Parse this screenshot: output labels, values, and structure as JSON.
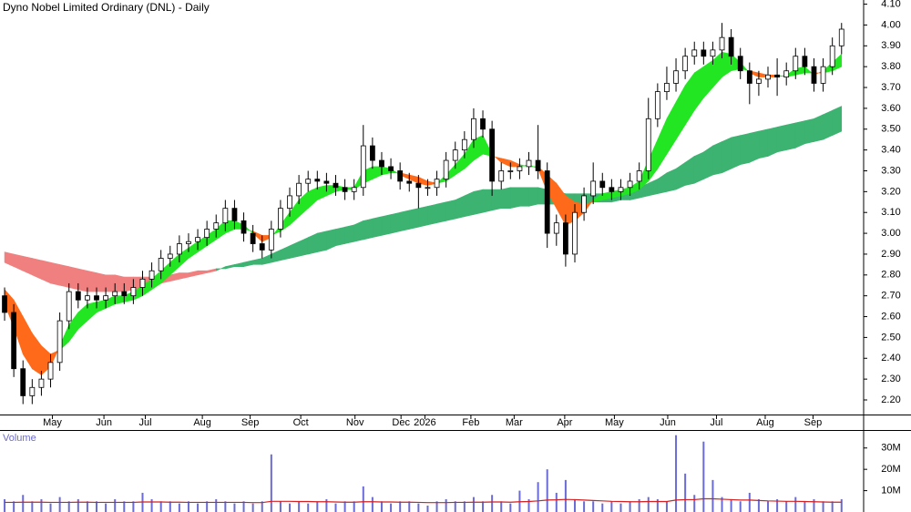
{
  "chart_data": [
    {
      "type": "candlestick",
      "title": "Dyno Nobel Limited Ordinary (DNL) - Daily",
      "open": [
        2.7,
        2.62,
        2.35,
        2.22,
        2.26,
        2.3,
        2.38,
        2.58,
        2.72,
        2.68,
        2.7,
        2.68,
        2.7,
        2.72,
        2.7,
        2.74,
        2.78,
        2.82,
        2.88,
        2.9,
        2.95,
        2.96,
        2.98,
        3.02,
        3.05,
        3.12,
        3.06,
        3.0,
        2.95,
        2.92,
        3.02,
        3.12,
        3.18,
        3.24,
        3.26,
        3.25,
        3.24,
        3.22,
        3.2,
        3.22,
        3.42,
        3.35,
        3.32,
        3.3,
        3.25,
        3.24,
        3.22,
        3.22,
        3.26,
        3.35,
        3.4,
        3.45,
        3.55,
        3.5,
        3.25,
        3.3,
        3.3,
        3.32,
        3.35,
        3.3,
        3.0,
        3.05,
        2.9,
        3.1,
        3.18,
        3.25,
        3.22,
        3.2,
        3.22,
        3.25,
        3.3,
        3.55,
        3.68,
        3.72,
        3.78,
        3.85,
        3.88,
        3.85,
        3.88,
        3.94,
        3.85,
        3.78,
        3.72,
        3.74,
        3.76,
        3.75,
        3.78,
        3.85,
        3.8,
        3.72,
        3.8,
        3.9
      ],
      "high": [
        2.74,
        2.66,
        2.39,
        2.3,
        2.34,
        2.42,
        2.62,
        2.76,
        2.76,
        2.74,
        2.74,
        2.74,
        2.76,
        2.76,
        2.78,
        2.82,
        2.86,
        2.92,
        2.94,
        2.99,
        3.0,
        3.02,
        3.06,
        3.09,
        3.16,
        3.16,
        3.1,
        3.04,
        2.99,
        3.06,
        3.16,
        3.22,
        3.28,
        3.3,
        3.3,
        3.29,
        3.28,
        3.26,
        3.26,
        3.52,
        3.46,
        3.39,
        3.36,
        3.34,
        3.29,
        3.28,
        3.26,
        3.3,
        3.39,
        3.44,
        3.49,
        3.6,
        3.59,
        3.54,
        3.34,
        3.34,
        3.36,
        3.39,
        3.52,
        3.34,
        3.09,
        3.09,
        3.14,
        3.22,
        3.34,
        3.29,
        3.26,
        3.26,
        3.29,
        3.34,
        3.65,
        3.72,
        3.8,
        3.84,
        3.89,
        3.92,
        3.92,
        3.92,
        4.01,
        3.98,
        3.89,
        3.82,
        3.78,
        3.8,
        3.84,
        3.82,
        3.89,
        3.89,
        3.84,
        3.84,
        3.94,
        4.01
      ],
      "low": [
        2.58,
        2.31,
        2.18,
        2.18,
        2.22,
        2.26,
        2.34,
        2.54,
        2.64,
        2.64,
        2.64,
        2.64,
        2.66,
        2.66,
        2.66,
        2.7,
        2.74,
        2.78,
        2.84,
        2.86,
        2.91,
        2.92,
        2.94,
        2.98,
        3.01,
        3.02,
        2.96,
        2.91,
        2.88,
        2.88,
        2.98,
        3.08,
        3.14,
        3.2,
        3.21,
        3.2,
        3.18,
        3.16,
        3.16,
        3.18,
        3.31,
        3.28,
        3.26,
        3.21,
        3.2,
        3.12,
        3.18,
        3.18,
        3.22,
        3.31,
        3.36,
        3.41,
        3.46,
        3.18,
        3.21,
        3.26,
        3.26,
        3.28,
        3.26,
        2.93,
        2.94,
        2.84,
        2.86,
        3.06,
        3.14,
        3.18,
        3.16,
        3.16,
        3.18,
        3.21,
        3.26,
        3.51,
        3.64,
        3.68,
        3.74,
        3.81,
        3.81,
        3.81,
        3.84,
        3.81,
        3.74,
        3.62,
        3.66,
        3.7,
        3.66,
        3.71,
        3.74,
        3.76,
        3.68,
        3.68,
        3.76,
        3.86
      ],
      "close": [
        2.62,
        2.35,
        2.22,
        2.26,
        2.3,
        2.38,
        2.58,
        2.72,
        2.68,
        2.7,
        2.68,
        2.7,
        2.72,
        2.7,
        2.74,
        2.78,
        2.82,
        2.88,
        2.9,
        2.95,
        2.96,
        2.98,
        3.02,
        3.05,
        3.12,
        3.06,
        3.0,
        2.95,
        2.92,
        3.02,
        3.12,
        3.18,
        3.24,
        3.26,
        3.25,
        3.24,
        3.22,
        3.2,
        3.22,
        3.42,
        3.35,
        3.32,
        3.3,
        3.25,
        3.24,
        3.22,
        3.22,
        3.26,
        3.35,
        3.4,
        3.45,
        3.55,
        3.5,
        3.25,
        3.3,
        3.3,
        3.32,
        3.35,
        3.3,
        3.0,
        3.05,
        2.9,
        3.1,
        3.18,
        3.25,
        3.22,
        3.2,
        3.22,
        3.25,
        3.3,
        3.55,
        3.68,
        3.72,
        3.78,
        3.85,
        3.88,
        3.85,
        3.88,
        3.94,
        3.85,
        3.78,
        3.72,
        3.74,
        3.76,
        3.75,
        3.78,
        3.85,
        3.8,
        3.72,
        3.8,
        3.9,
        3.98
      ],
      "candle_up_color": "#ffffff",
      "candle_down_color": "#000000",
      "bands": [
        {
          "fast": [
            2.86,
            2.84,
            2.82,
            2.8,
            2.78,
            2.76,
            2.75,
            2.74,
            2.73,
            2.72,
            2.72,
            2.72,
            2.72,
            2.72,
            2.73,
            2.74,
            2.75,
            2.76,
            2.77,
            2.78,
            2.79,
            2.8,
            2.81,
            2.82,
            2.84,
            2.85,
            2.86,
            2.87,
            2.88,
            2.9,
            2.92,
            2.94,
            2.96,
            2.98,
            3.0,
            3.01,
            3.02,
            3.03,
            3.04,
            3.06,
            3.07,
            3.08,
            3.09,
            3.1,
            3.11,
            3.12,
            3.13,
            3.14,
            3.15,
            3.16,
            3.18,
            3.2,
            3.21,
            3.21,
            3.21,
            3.22,
            3.22,
            3.22,
            3.22,
            3.21,
            3.2,
            3.19,
            3.19,
            3.19,
            3.19,
            3.19,
            3.2,
            3.2,
            3.21,
            3.22,
            3.24,
            3.26,
            3.29,
            3.31,
            3.34,
            3.37,
            3.39,
            3.42,
            3.44,
            3.46,
            3.47,
            3.48,
            3.49,
            3.5,
            3.51,
            3.52,
            3.53,
            3.54,
            3.55,
            3.57,
            3.59,
            3.61
          ],
          "slow": [
            2.91,
            2.9,
            2.89,
            2.88,
            2.87,
            2.86,
            2.85,
            2.84,
            2.83,
            2.82,
            2.81,
            2.8,
            2.8,
            2.79,
            2.79,
            2.79,
            2.79,
            2.8,
            2.8,
            2.81,
            2.81,
            2.82,
            2.82,
            2.83,
            2.83,
            2.84,
            2.84,
            2.85,
            2.85,
            2.86,
            2.87,
            2.88,
            2.89,
            2.9,
            2.91,
            2.92,
            2.94,
            2.95,
            2.96,
            2.97,
            2.98,
            2.99,
            3.0,
            3.01,
            3.02,
            3.03,
            3.04,
            3.05,
            3.06,
            3.07,
            3.08,
            3.09,
            3.1,
            3.11,
            3.12,
            3.12,
            3.13,
            3.13,
            3.14,
            3.14,
            3.14,
            3.14,
            3.14,
            3.14,
            3.15,
            3.15,
            3.15,
            3.16,
            3.16,
            3.17,
            3.18,
            3.19,
            3.2,
            3.21,
            3.23,
            3.24,
            3.26,
            3.28,
            3.29,
            3.31,
            3.33,
            3.34,
            3.36,
            3.37,
            3.39,
            3.4,
            3.41,
            3.43,
            3.44,
            3.45,
            3.47,
            3.49
          ],
          "up_color": "#3cb371",
          "down_color": "#f08080"
        },
        {
          "fast": [
            2.66,
            2.55,
            2.42,
            2.35,
            2.32,
            2.36,
            2.46,
            2.56,
            2.62,
            2.66,
            2.67,
            2.68,
            2.7,
            2.7,
            2.72,
            2.75,
            2.78,
            2.82,
            2.86,
            2.9,
            2.93,
            2.96,
            2.99,
            3.02,
            3.06,
            3.06,
            3.04,
            3.0,
            2.96,
            2.98,
            3.04,
            3.1,
            3.16,
            3.2,
            3.22,
            3.23,
            3.23,
            3.22,
            3.22,
            3.3,
            3.32,
            3.32,
            3.31,
            3.28,
            3.26,
            3.24,
            3.23,
            3.24,
            3.28,
            3.33,
            3.38,
            3.45,
            3.47,
            3.38,
            3.34,
            3.32,
            3.32,
            3.33,
            3.31,
            3.2,
            3.12,
            3.04,
            3.06,
            3.1,
            3.16,
            3.19,
            3.2,
            3.21,
            3.22,
            3.25,
            3.35,
            3.45,
            3.55,
            3.63,
            3.71,
            3.77,
            3.8,
            3.83,
            3.87,
            3.86,
            3.82,
            3.77,
            3.75,
            3.75,
            3.75,
            3.76,
            3.79,
            3.8,
            3.76,
            3.78,
            3.82,
            3.86
          ],
          "slow": [
            2.73,
            2.68,
            2.6,
            2.52,
            2.46,
            2.42,
            2.44,
            2.48,
            2.54,
            2.58,
            2.62,
            2.64,
            2.66,
            2.67,
            2.68,
            2.7,
            2.73,
            2.76,
            2.8,
            2.84,
            2.88,
            2.91,
            2.94,
            2.97,
            3.0,
            3.02,
            3.02,
            3.01,
            2.99,
            2.99,
            3.01,
            3.04,
            3.08,
            3.12,
            3.16,
            3.18,
            3.2,
            3.21,
            3.21,
            3.24,
            3.26,
            3.28,
            3.29,
            3.29,
            3.28,
            3.27,
            3.25,
            3.24,
            3.25,
            3.28,
            3.31,
            3.35,
            3.38,
            3.37,
            3.36,
            3.35,
            3.33,
            3.32,
            3.32,
            3.28,
            3.24,
            3.18,
            3.15,
            3.14,
            3.15,
            3.16,
            3.17,
            3.18,
            3.19,
            3.21,
            3.25,
            3.31,
            3.38,
            3.45,
            3.52,
            3.59,
            3.65,
            3.7,
            3.75,
            3.78,
            3.79,
            3.78,
            3.77,
            3.76,
            3.76,
            3.75,
            3.76,
            3.77,
            3.77,
            3.77,
            3.78,
            3.8
          ],
          "up_color": "#22e622",
          "down_color": "#ff6a1a"
        }
      ],
      "xlim": [
        -0.5,
        93.4
      ],
      "xticks": [
        {
          "value": 5.2,
          "label": "May"
        },
        {
          "value": 10.8,
          "label": "Jun"
        },
        {
          "value": 15.3,
          "label": "Jul"
        },
        {
          "value": 21.5,
          "label": "Aug"
        },
        {
          "value": 26.7,
          "label": "Sep"
        },
        {
          "value": 32.2,
          "label": "Oct"
        },
        {
          "value": 38.1,
          "label": "Nov"
        },
        {
          "value": 43.1,
          "label": "Dec"
        },
        {
          "value": 45.7,
          "label": "2026"
        },
        {
          "value": 50.7,
          "label": "Feb"
        },
        {
          "value": 55.4,
          "label": "Mar"
        },
        {
          "value": 60.9,
          "label": "Apr"
        },
        {
          "value": 66.3,
          "label": "May"
        },
        {
          "value": 72.1,
          "label": "Jun"
        },
        {
          "value": 77.4,
          "label": "Jul"
        },
        {
          "value": 82.7,
          "label": "Aug"
        },
        {
          "value": 87.9,
          "label": "Sep"
        }
      ],
      "ylim": [
        2.13,
        4.12
      ],
      "yticks": [
        {
          "value": 2.2,
          "label": "2.20"
        },
        {
          "value": 2.3,
          "label": "2.30"
        },
        {
          "value": 2.4,
          "label": "2.40"
        },
        {
          "value": 2.5,
          "label": "2.50"
        },
        {
          "value": 2.6,
          "label": "2.60"
        },
        {
          "value": 2.7,
          "label": "2.70"
        },
        {
          "value": 2.8,
          "label": "2.80"
        },
        {
          "value": 2.9,
          "label": "2.90"
        },
        {
          "value": 3.0,
          "label": "3.00"
        },
        {
          "value": 3.1,
          "label": "3.10"
        },
        {
          "value": 3.2,
          "label": "3.20"
        },
        {
          "value": 3.3,
          "label": "3.30"
        },
        {
          "value": 3.4,
          "label": "3.40"
        },
        {
          "value": 3.5,
          "label": "3.50"
        },
        {
          "value": 3.6,
          "label": "3.60"
        },
        {
          "value": 3.7,
          "label": "3.70"
        },
        {
          "value": 3.8,
          "label": "3.80"
        },
        {
          "value": 3.9,
          "label": "3.90"
        },
        {
          "value": 4.0,
          "label": "4.00"
        },
        {
          "value": 4.1,
          "label": "4.10"
        }
      ]
    },
    {
      "type": "bar",
      "title": "Volume",
      "values": [
        6,
        5,
        8,
        5,
        6,
        4,
        7,
        5,
        6,
        5,
        5,
        4,
        6,
        5,
        5,
        9,
        6,
        5,
        5,
        4,
        5,
        4,
        5,
        6,
        5,
        4,
        5,
        4,
        5,
        27,
        5,
        4,
        5,
        4,
        5,
        6,
        4,
        5,
        5,
        12,
        7,
        5,
        4,
        5,
        5,
        4,
        3,
        5,
        6,
        5,
        5,
        7,
        5,
        8,
        5,
        4,
        10,
        6,
        14,
        20,
        9,
        15,
        6,
        5,
        5,
        4,
        5,
        4,
        5,
        6,
        7,
        6,
        5,
        36,
        18,
        8,
        33,
        15,
        7,
        6,
        5,
        9,
        6,
        5,
        6,
        5,
        7,
        5,
        6,
        5,
        5,
        6
      ],
      "color": "#6b6bd6",
      "average": {
        "values": [
          4.5,
          4.5,
          4.6,
          4.6,
          4.6,
          4.5,
          4.5,
          4.5,
          4.6,
          4.6,
          4.5,
          4.5,
          4.5,
          4.5,
          4.5,
          4.7,
          4.7,
          4.7,
          4.6,
          4.6,
          4.5,
          4.5,
          4.5,
          4.5,
          4.5,
          4.5,
          4.5,
          4.4,
          4.4,
          5.0,
          5.0,
          5.0,
          4.9,
          4.9,
          4.8,
          4.8,
          4.7,
          4.6,
          4.6,
          4.8,
          4.8,
          4.7,
          4.7,
          4.6,
          4.6,
          4.5,
          4.4,
          4.4,
          4.4,
          4.5,
          4.5,
          4.6,
          4.6,
          4.7,
          4.7,
          4.6,
          4.8,
          4.9,
          5.2,
          5.6,
          5.7,
          5.9,
          5.8,
          5.6,
          5.4,
          5.2,
          5.0,
          4.9,
          4.8,
          4.8,
          4.9,
          4.9,
          4.9,
          5.6,
          5.8,
          5.8,
          6.2,
          6.2,
          6.0,
          5.8,
          5.6,
          5.6,
          5.4,
          5.2,
          5.1,
          5.0,
          5.0,
          4.9,
          4.8,
          4.7,
          4.6,
          4.6
        ],
        "color": "#d42020"
      },
      "xlim": [
        -0.5,
        93.4
      ],
      "ylim": [
        0,
        38
      ],
      "yticks": [
        {
          "value": 10,
          "label": "10M"
        },
        {
          "value": 20,
          "label": "20M"
        },
        {
          "value": 30,
          "label": "30M"
        }
      ]
    }
  ]
}
